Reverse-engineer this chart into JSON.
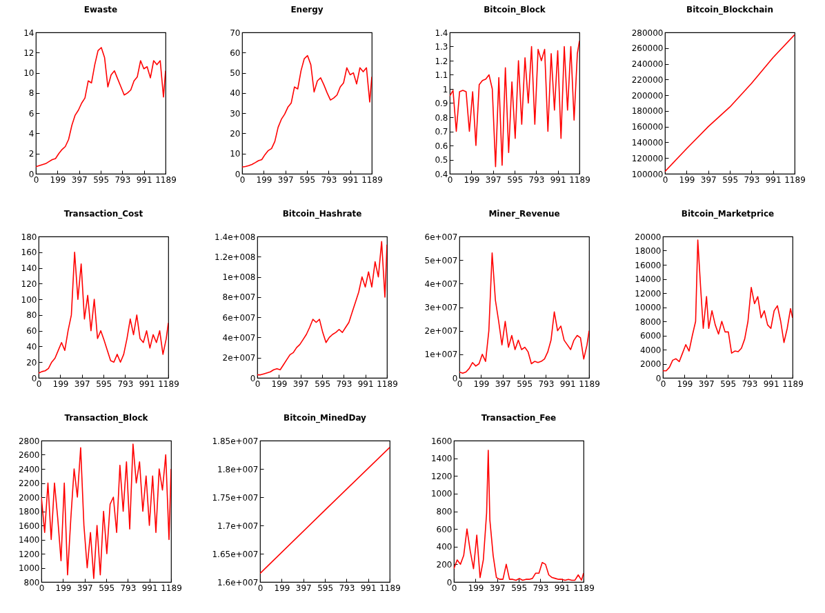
{
  "chart_data": [
    {
      "type": "line",
      "title": "Ewaste",
      "x": [
        0,
        30,
        60,
        90,
        120,
        150,
        180,
        210,
        240,
        270,
        300,
        330,
        360,
        390,
        420,
        450,
        480,
        510,
        540,
        570,
        600,
        630,
        660,
        690,
        720,
        750,
        780,
        810,
        840,
        870,
        900,
        930,
        960,
        990,
        1020,
        1050,
        1080,
        1110,
        1140,
        1170,
        1189
      ],
      "series": [
        {
          "color": "#ff0000",
          "values": [
            0.7,
            0.8,
            0.9,
            1.0,
            1.2,
            1.4,
            1.5,
            2.0,
            2.4,
            2.7,
            3.4,
            4.8,
            5.8,
            6.3,
            7.0,
            7.5,
            9.2,
            9.0,
            10.8,
            12.2,
            12.5,
            11.5,
            8.6,
            9.8,
            10.2,
            9.4,
            8.6,
            7.8,
            8.0,
            8.3,
            9.2,
            9.6,
            11.2,
            10.4,
            10.6,
            9.5,
            11.2,
            10.8,
            11.2,
            7.6,
            10.2
          ]
        }
      ],
      "xlim": [
        0,
        1189
      ],
      "xticks": [
        0,
        199,
        397,
        595,
        793,
        991,
        1189
      ],
      "ylim": [
        0,
        14
      ],
      "yticks": [
        0,
        2,
        4,
        6,
        8,
        10,
        12,
        14
      ]
    },
    {
      "type": "line",
      "title": "Energy",
      "x": [
        0,
        30,
        60,
        90,
        120,
        150,
        180,
        210,
        240,
        270,
        300,
        330,
        360,
        390,
        420,
        450,
        480,
        510,
        540,
        570,
        600,
        630,
        660,
        690,
        720,
        750,
        780,
        810,
        840,
        870,
        900,
        930,
        960,
        990,
        1020,
        1050,
        1080,
        1110,
        1140,
        1170,
        1189
      ],
      "series": [
        {
          "color": "#ff0000",
          "values": [
            3.3,
            3.6,
            4,
            4.6,
            5.5,
            6.5,
            7,
            9.5,
            11.5,
            12.5,
            16,
            23,
            27,
            29.5,
            33,
            35,
            43,
            42,
            51,
            57,
            58.5,
            54,
            40.5,
            46,
            47.5,
            44,
            40,
            36.5,
            37.5,
            39,
            43,
            45,
            52.5,
            49,
            50,
            44.5,
            52.5,
            50.5,
            52.5,
            35.5,
            48
          ]
        }
      ],
      "xlim": [
        0,
        1189
      ],
      "xticks": [
        0,
        199,
        397,
        595,
        793,
        991,
        1189
      ],
      "ylim": [
        0,
        70
      ],
      "yticks": [
        0,
        10,
        20,
        30,
        40,
        50,
        60,
        70
      ]
    },
    {
      "type": "line",
      "title": "Bitcoin_Block",
      "x": [
        0,
        30,
        60,
        90,
        120,
        150,
        180,
        210,
        240,
        270,
        300,
        330,
        360,
        390,
        420,
        450,
        480,
        510,
        540,
        570,
        600,
        630,
        660,
        690,
        720,
        750,
        780,
        810,
        840,
        870,
        900,
        930,
        960,
        990,
        1020,
        1050,
        1080,
        1110,
        1140,
        1170,
        1189
      ],
      "series": [
        {
          "color": "#ff0000",
          "values": [
            0.95,
            0.99,
            0.7,
            0.98,
            0.99,
            0.98,
            0.7,
            0.98,
            0.6,
            1.03,
            1.06,
            1.07,
            1.1,
            1.0,
            0.45,
            1.08,
            0.46,
            1.15,
            0.55,
            1.05,
            0.65,
            1.2,
            0.75,
            1.22,
            0.9,
            1.3,
            0.75,
            1.28,
            1.2,
            1.28,
            0.7,
            1.25,
            0.85,
            1.27,
            0.65,
            1.3,
            0.85,
            1.3,
            0.78,
            1.25,
            1.34
          ]
        }
      ],
      "xlim": [
        0,
        1189
      ],
      "xticks": [
        0,
        199,
        397,
        595,
        793,
        991,
        1189
      ],
      "ylim": [
        0.4,
        1.4
      ],
      "yticks": [
        0.4,
        0.5,
        0.6,
        0.7,
        0.8,
        0.9,
        1,
        1.1,
        1.2,
        1.3,
        1.4
      ]
    },
    {
      "type": "line",
      "title": "Bitcoin_Blockchain",
      "x": [
        0,
        199,
        397,
        595,
        793,
        991,
        1189
      ],
      "series": [
        {
          "color": "#ff0000",
          "values": [
            103000,
            132000,
            160000,
            185000,
            215000,
            248000,
            277000
          ]
        }
      ],
      "xlim": [
        0,
        1189
      ],
      "xticks": [
        0,
        199,
        397,
        595,
        793,
        991,
        1189
      ],
      "ylim": [
        100000,
        280000
      ],
      "yticks": [
        100000,
        120000,
        140000,
        160000,
        180000,
        200000,
        220000,
        240000,
        260000,
        280000
      ]
    },
    {
      "type": "line",
      "title": "Transaction_Cost",
      "x": [
        0,
        30,
        60,
        90,
        120,
        150,
        180,
        210,
        240,
        270,
        300,
        330,
        360,
        390,
        420,
        450,
        480,
        510,
        540,
        570,
        600,
        630,
        660,
        690,
        720,
        750,
        780,
        810,
        840,
        870,
        900,
        930,
        960,
        990,
        1020,
        1050,
        1080,
        1110,
        1140,
        1170,
        1189
      ],
      "series": [
        {
          "color": "#ff0000",
          "values": [
            6,
            8,
            9,
            12,
            20,
            25,
            35,
            45,
            35,
            60,
            80,
            160,
            100,
            145,
            75,
            105,
            60,
            100,
            50,
            60,
            48,
            35,
            22,
            20,
            30,
            20,
            30,
            50,
            75,
            55,
            80,
            50,
            45,
            60,
            38,
            55,
            45,
            60,
            30,
            50,
            70
          ]
        }
      ],
      "xlim": [
        0,
        1189
      ],
      "xticks": [
        0,
        199,
        397,
        595,
        793,
        991,
        1189
      ],
      "ylim": [
        0,
        180
      ],
      "yticks": [
        0,
        20,
        40,
        60,
        80,
        100,
        120,
        140,
        160,
        180
      ]
    },
    {
      "type": "line",
      "title": "Bitcoin_Hashrate",
      "x": [
        0,
        30,
        60,
        90,
        120,
        150,
        180,
        210,
        240,
        270,
        300,
        330,
        360,
        390,
        420,
        450,
        480,
        510,
        540,
        570,
        600,
        630,
        660,
        690,
        720,
        750,
        780,
        810,
        840,
        870,
        900,
        930,
        960,
        990,
        1020,
        1050,
        1080,
        1110,
        1140,
        1170,
        1189
      ],
      "series": [
        {
          "color": "#ff0000",
          "values": [
            3000000,
            3000000,
            4000000,
            5000000,
            6000000,
            8000000,
            9000000,
            8000000,
            13000000,
            18000000,
            23000000,
            25000000,
            30000000,
            33000000,
            38000000,
            43000000,
            50000000,
            58000000,
            55000000,
            58000000,
            45000000,
            35000000,
            40000000,
            43000000,
            45000000,
            48000000,
            45000000,
            50000000,
            55000000,
            65000000,
            75000000,
            85000000,
            100000000,
            90000000,
            105000000,
            90000000,
            115000000,
            100000000,
            135000000,
            80000000,
            132000000
          ]
        }
      ],
      "xlim": [
        0,
        1189
      ],
      "xticks": [
        0,
        199,
        397,
        595,
        793,
        991,
        1189
      ],
      "ylim": [
        0,
        140000000
      ],
      "yticks": [
        0,
        {
          "value": 20000000,
          "label": "2e+007"
        },
        {
          "value": 40000000,
          "label": "4e+007"
        },
        {
          "value": 60000000,
          "label": "6e+007"
        },
        {
          "value": 80000000,
          "label": "8e+007"
        },
        {
          "value": 100000000,
          "label": "1e+008"
        },
        {
          "value": 120000000,
          "label": "1.2e+008"
        },
        {
          "value": 140000000,
          "label": "1.4e+008"
        }
      ]
    },
    {
      "type": "line",
      "title": "Miner_Revenue",
      "x": [
        0,
        30,
        60,
        90,
        120,
        150,
        180,
        210,
        240,
        270,
        300,
        330,
        360,
        390,
        420,
        450,
        480,
        510,
        540,
        570,
        600,
        630,
        660,
        690,
        720,
        750,
        780,
        810,
        840,
        870,
        900,
        930,
        960,
        990,
        1020,
        1050,
        1080,
        1110,
        1140,
        1170,
        1189
      ],
      "series": [
        {
          "color": "#ff0000",
          "values": [
            2500000,
            2000000,
            2500000,
            4000000,
            6500000,
            5000000,
            6000000,
            10000000,
            7000000,
            20000000,
            53000000,
            33000000,
            24000000,
            14000000,
            24000000,
            13000000,
            18000000,
            12000000,
            16000000,
            12000000,
            13000000,
            11000000,
            6000000,
            7000000,
            6500000,
            7000000,
            8000000,
            11000000,
            16000000,
            28000000,
            20000000,
            22000000,
            16000000,
            14000000,
            12000000,
            16000000,
            18000000,
            17000000,
            8000000,
            14000000,
            20000000
          ]
        }
      ],
      "xlim": [
        0,
        1189
      ],
      "xticks": [
        0,
        199,
        397,
        595,
        793,
        991,
        1189
      ],
      "ylim": [
        0,
        60000000
      ],
      "yticks": [
        0,
        {
          "value": 10000000,
          "label": "1e+007"
        },
        {
          "value": 20000000,
          "label": "2e+007"
        },
        {
          "value": 30000000,
          "label": "3e+007"
        },
        {
          "value": 40000000,
          "label": "4e+007"
        },
        {
          "value": 50000000,
          "label": "5e+007"
        },
        {
          "value": 60000000,
          "label": "6e+007"
        }
      ]
    },
    {
      "type": "line",
      "title": "Bitcoin_Marketprice",
      "x": [
        0,
        30,
        60,
        90,
        120,
        150,
        180,
        210,
        240,
        270,
        300,
        320,
        345,
        370,
        400,
        420,
        450,
        480,
        510,
        540,
        570,
        600,
        630,
        660,
        690,
        720,
        750,
        780,
        810,
        840,
        870,
        900,
        930,
        960,
        990,
        1020,
        1050,
        1080,
        1110,
        1140,
        1170,
        1189
      ],
      "series": [
        {
          "color": "#ff0000",
          "values": [
            1000,
            1000,
            1500,
            2500,
            2700,
            2300,
            3500,
            4700,
            3800,
            6000,
            8000,
            19500,
            13000,
            7000,
            11500,
            7000,
            9500,
            7500,
            6200,
            8000,
            6500,
            6500,
            3500,
            3800,
            3700,
            4200,
            5500,
            8000,
            12800,
            10500,
            11500,
            8500,
            9500,
            7500,
            7000,
            9500,
            10200,
            8000,
            5000,
            7000,
            9800,
            8500
          ]
        }
      ],
      "xlim": [
        0,
        1189
      ],
      "xticks": [
        0,
        199,
        397,
        595,
        793,
        991,
        1189
      ],
      "ylim": [
        0,
        20000
      ],
      "yticks": [
        0,
        2000,
        4000,
        6000,
        8000,
        10000,
        12000,
        14000,
        16000,
        18000,
        20000
      ]
    },
    {
      "type": "line",
      "title": "Transaction_Block",
      "x": [
        0,
        30,
        60,
        90,
        120,
        150,
        180,
        210,
        240,
        270,
        300,
        330,
        360,
        390,
        420,
        450,
        480,
        510,
        540,
        570,
        600,
        630,
        660,
        690,
        720,
        750,
        780,
        810,
        840,
        870,
        900,
        930,
        960,
        990,
        1020,
        1050,
        1080,
        1110,
        1140,
        1170,
        1189
      ],
      "series": [
        {
          "color": "#ff0000",
          "values": [
            2000,
            1500,
            2200,
            1400,
            2200,
            1700,
            1100,
            2200,
            900,
            1700,
            2400,
            2000,
            2700,
            1600,
            1000,
            1500,
            850,
            1600,
            900,
            1800,
            1200,
            1900,
            2000,
            1500,
            2450,
            1800,
            2500,
            1550,
            2750,
            2200,
            2500,
            1800,
            2300,
            1600,
            2300,
            1500,
            2400,
            2100,
            2600,
            1400,
            2400
          ]
        }
      ],
      "xlim": [
        0,
        1189
      ],
      "xticks": [
        0,
        199,
        397,
        595,
        793,
        991,
        1189
      ],
      "ylim": [
        800,
        2800
      ],
      "yticks": [
        800,
        1000,
        1200,
        1400,
        1600,
        1800,
        2000,
        2200,
        2400,
        2600,
        2800
      ]
    },
    {
      "type": "line",
      "title": "Bitcoin_MinedDay",
      "x": [
        0,
        595,
        1189
      ],
      "series": [
        {
          "color": "#ff0000",
          "values": [
            16150000,
            17270000,
            18380000
          ]
        }
      ],
      "xlim": [
        0,
        1189
      ],
      "xticks": [
        0,
        199,
        397,
        595,
        793,
        991,
        1189
      ],
      "ylim": [
        16000000,
        18500000
      ],
      "yticks": [
        {
          "value": 16000000,
          "label": "1.6e+007"
        },
        {
          "value": 16500000,
          "label": "1.65e+007"
        },
        {
          "value": 17000000,
          "label": "1.7e+007"
        },
        {
          "value": 17500000,
          "label": "1.75e+007"
        },
        {
          "value": 18000000,
          "label": "1.8e+007"
        },
        {
          "value": 18500000,
          "label": "1.85e+007"
        }
      ]
    },
    {
      "type": "line",
      "title": "Transaction_Fee",
      "x": [
        0,
        30,
        60,
        90,
        120,
        150,
        180,
        210,
        240,
        270,
        300,
        315,
        330,
        360,
        390,
        420,
        450,
        480,
        510,
        540,
        570,
        600,
        630,
        660,
        690,
        720,
        750,
        780,
        810,
        840,
        870,
        900,
        930,
        960,
        990,
        1020,
        1050,
        1080,
        1110,
        1140,
        1170,
        1189
      ],
      "series": [
        {
          "color": "#ff0000",
          "values": [
            150,
            250,
            200,
            300,
            600,
            350,
            150,
            530,
            50,
            250,
            780,
            1490,
            700,
            300,
            50,
            30,
            30,
            200,
            30,
            30,
            20,
            40,
            20,
            30,
            30,
            40,
            100,
            100,
            220,
            200,
            80,
            50,
            40,
            30,
            30,
            20,
            30,
            20,
            20,
            80,
            20,
            100
          ]
        }
      ],
      "xlim": [
        0,
        1189
      ],
      "xticks": [
        0,
        199,
        397,
        595,
        793,
        991,
        1189
      ],
      "ylim": [
        0,
        1600
      ],
      "yticks": [
        0,
        200,
        400,
        600,
        800,
        1000,
        1200,
        1400,
        1600
      ]
    }
  ]
}
